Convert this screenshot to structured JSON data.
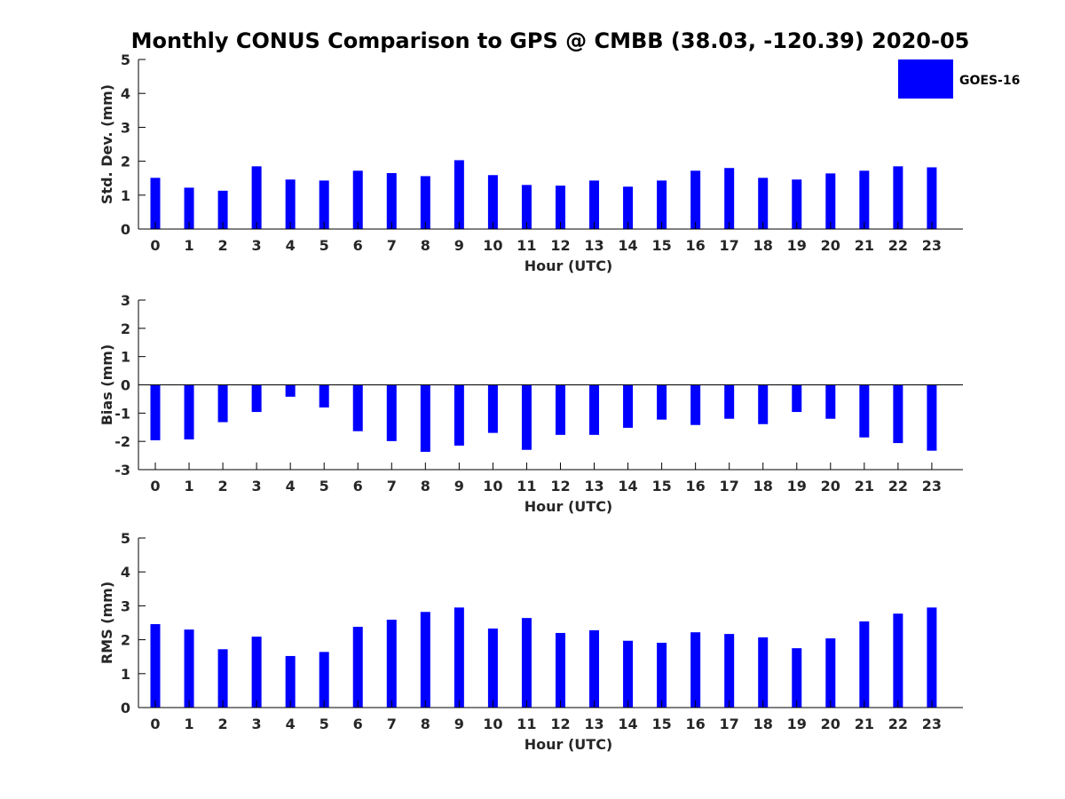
{
  "chart_data": {
    "title": "Monthly CONUS Comparison to GPS @ CMBB (38.03, -120.39) 2020-05",
    "legend": {
      "label": "GOES-16",
      "position": "top-right",
      "color": "#0000ff"
    },
    "bar_color": "#0000ff",
    "panels": [
      {
        "type": "bar",
        "ylabel": "Std. Dev. (mm)",
        "xlabel": "Hour (UTC)",
        "ylim": [
          0,
          5
        ],
        "yticks": [
          0,
          1,
          2,
          3,
          4,
          5
        ],
        "categories": [
          0,
          1,
          2,
          3,
          4,
          5,
          6,
          7,
          8,
          9,
          10,
          11,
          12,
          13,
          14,
          15,
          16,
          17,
          18,
          19,
          20,
          21,
          22,
          23
        ],
        "values": [
          1.51,
          1.22,
          1.13,
          1.85,
          1.46,
          1.43,
          1.72,
          1.65,
          1.56,
          2.03,
          1.59,
          1.3,
          1.28,
          1.43,
          1.25,
          1.43,
          1.72,
          1.8,
          1.51,
          1.46,
          1.64,
          1.72,
          1.85,
          1.82
        ]
      },
      {
        "type": "bar",
        "ylabel": "Bias (mm)",
        "xlabel": "Hour (UTC)",
        "ylim": [
          -3,
          3
        ],
        "yticks": [
          -3,
          -2,
          -1,
          0,
          1,
          2,
          3
        ],
        "categories": [
          0,
          1,
          2,
          3,
          4,
          5,
          6,
          7,
          8,
          9,
          10,
          11,
          12,
          13,
          14,
          15,
          16,
          17,
          18,
          19,
          20,
          21,
          22,
          23
        ],
        "values": [
          -1.96,
          -1.93,
          -1.32,
          -0.96,
          -0.42,
          -0.8,
          -1.64,
          -1.99,
          -2.37,
          -2.15,
          -1.7,
          -2.3,
          -1.77,
          -1.77,
          -1.52,
          -1.23,
          -1.42,
          -1.2,
          -1.39,
          -0.96,
          -1.2,
          -1.86,
          -2.06,
          -2.33
        ]
      },
      {
        "type": "bar",
        "ylabel": "RMS (mm)",
        "xlabel": "Hour (UTC)",
        "ylim": [
          0,
          5
        ],
        "yticks": [
          0,
          1,
          2,
          3,
          4,
          5
        ],
        "categories": [
          0,
          1,
          2,
          3,
          4,
          5,
          6,
          7,
          8,
          9,
          10,
          11,
          12,
          13,
          14,
          15,
          16,
          17,
          18,
          19,
          20,
          21,
          22,
          23
        ],
        "values": [
          2.46,
          2.3,
          1.72,
          2.09,
          1.52,
          1.64,
          2.38,
          2.59,
          2.82,
          2.95,
          2.33,
          2.64,
          2.2,
          2.28,
          1.97,
          1.91,
          2.22,
          2.17,
          2.07,
          1.75,
          2.04,
          2.54,
          2.77,
          2.95
        ]
      }
    ]
  }
}
